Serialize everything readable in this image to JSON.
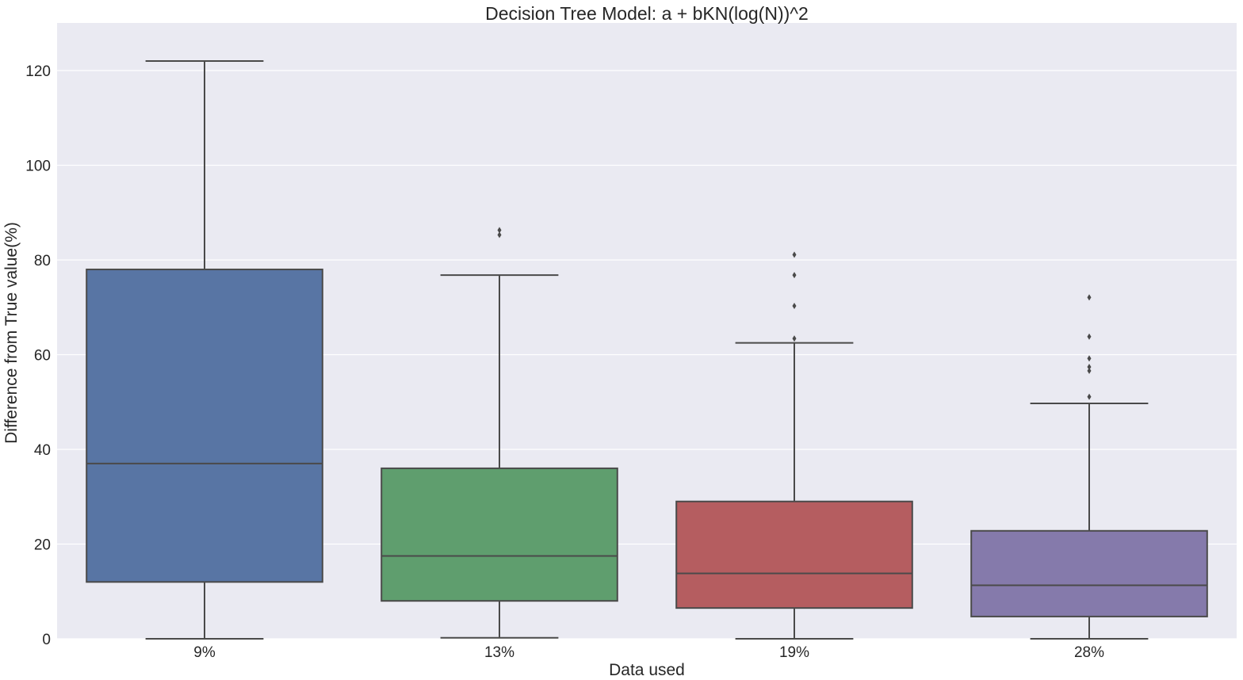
{
  "chart_data": {
    "type": "box",
    "title": "Decision Tree Model: a + bKN(log(N))^2",
    "xlabel": "Data used",
    "ylabel": "Difference from True value(%)",
    "ylim": [
      0,
      130
    ],
    "yticks": [
      0,
      20,
      40,
      60,
      80,
      100,
      120
    ],
    "grid": true,
    "categories": [
      "9%",
      "13%",
      "19%",
      "28%"
    ],
    "colors": [
      "#5875a4",
      "#5f9e6e",
      "#b55d60",
      "#857aab"
    ],
    "boxes": [
      {
        "category": "9%",
        "whislo": 0.0,
        "q1": 12.0,
        "med": 37.0,
        "q3": 78.0,
        "whishi": 122.0,
        "fliers": []
      },
      {
        "category": "13%",
        "whislo": 0.2,
        "q1": 8.0,
        "med": 17.5,
        "q3": 36.0,
        "whishi": 76.8,
        "fliers": [
          85.3,
          86.3
        ]
      },
      {
        "category": "19%",
        "whislo": 0.0,
        "q1": 6.5,
        "med": 13.8,
        "q3": 29.0,
        "whishi": 62.5,
        "fliers": [
          63.4,
          70.3,
          76.8,
          81.1
        ]
      },
      {
        "category": "28%",
        "whislo": 0.0,
        "q1": 4.7,
        "med": 11.3,
        "q3": 22.8,
        "whishi": 49.7,
        "fliers": [
          51.1,
          56.6,
          57.4,
          59.2,
          63.8,
          72.1
        ]
      }
    ]
  }
}
